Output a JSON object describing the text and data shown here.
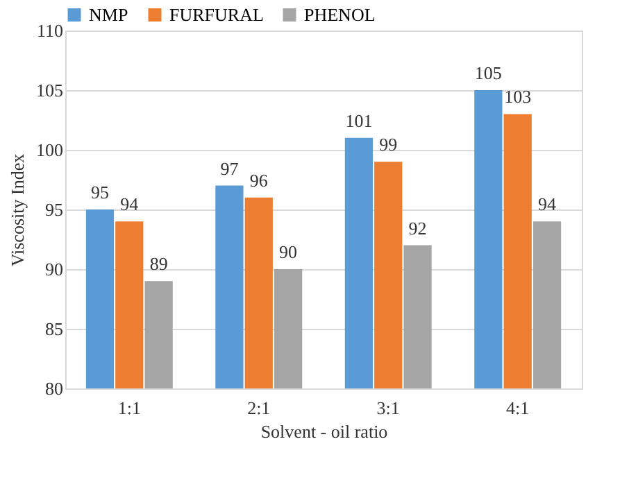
{
  "chart_data": {
    "type": "bar",
    "xlabel": "Solvent - oil ratio",
    "ylabel": "Viscosity Index",
    "categories": [
      "1:1",
      "2:1",
      "3:1",
      "4:1"
    ],
    "series": [
      {
        "name": "NMP",
        "color": "#5b9bd5",
        "values": [
          95,
          97,
          101,
          105
        ]
      },
      {
        "name": "FURFURAL",
        "color": "#ed7d31",
        "values": [
          94,
          96,
          99,
          103
        ]
      },
      {
        "name": "PHENOL",
        "color": "#a5a5a5",
        "values": [
          89,
          90,
          92,
          94
        ]
      }
    ],
    "ylim": [
      80,
      110
    ],
    "yticks": [
      80,
      85,
      90,
      95,
      100,
      105,
      110
    ],
    "grid": "y",
    "legend": "top",
    "data_labels": true
  }
}
